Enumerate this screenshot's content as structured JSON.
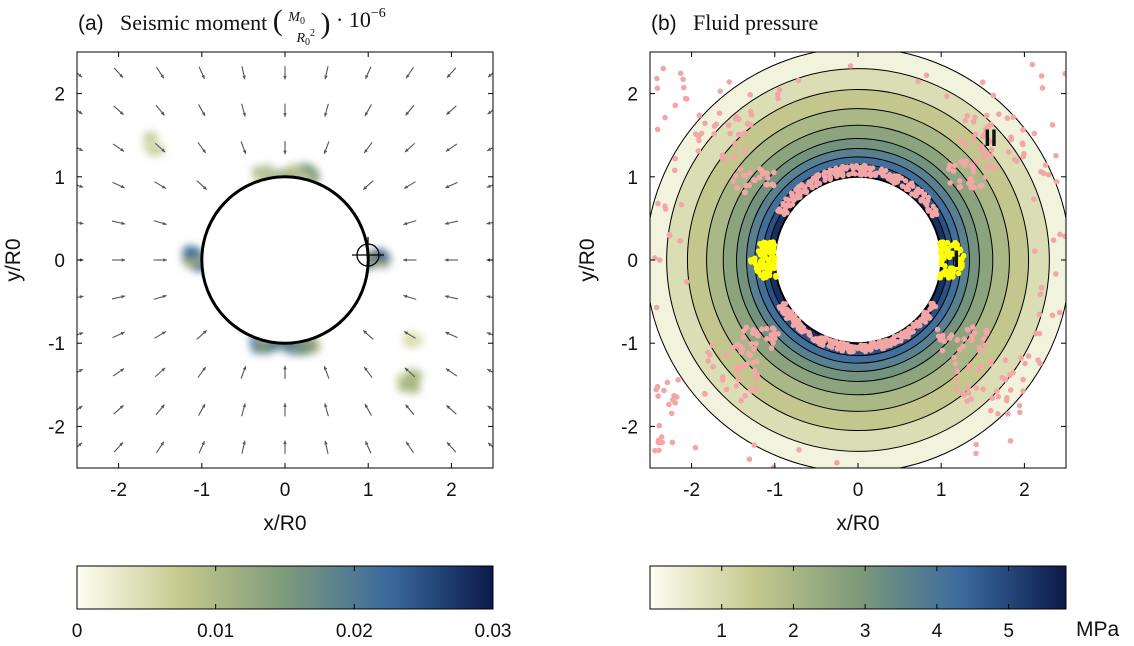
{
  "chart_data": [
    {
      "type": "heatmap",
      "panel_tag": "(a)",
      "title": "Seismic moment (M0/R0²) · 10⁻⁶",
      "xlabel": "x/R0",
      "ylabel": "y/R0",
      "xlim": [
        -2.5,
        2.5
      ],
      "ylim": [
        -2.5,
        2.5
      ],
      "xticks": [
        -2,
        -1,
        0,
        1,
        2
      ],
      "yticks": [
        -2,
        -1,
        0,
        1,
        2
      ],
      "tick_labels": {
        "x": [
          "-2",
          "-1",
          "0",
          "1",
          "2"
        ],
        "y": [
          "-2",
          "-1",
          "0",
          "1",
          "2"
        ]
      },
      "circle_radius": 1.0,
      "marker": {
        "x": 1.0,
        "y": 0.05,
        "symbol": "crosshair"
      },
      "high_moment_zones": [
        "top of circle",
        "bottom of circle",
        "left flank (x≈-1.1)",
        "right flank (x≈1.1)"
      ],
      "colorbar": {
        "min": 0,
        "max": 0.03,
        "ticks": [
          0,
          0.01,
          0.02,
          0.03
        ],
        "tick_labels": [
          "0",
          "0.01",
          "0.02",
          "0.03"
        ],
        "colors": [
          "#fefef2",
          "#c5c98e",
          "#7d9a7a",
          "#3a6a9e",
          "#0b1a4a"
        ]
      },
      "arrow_color": "#555555"
    },
    {
      "type": "heatmap",
      "panel_tag": "(b)",
      "title": "Fluid pressure",
      "xlabel": "x/R0",
      "ylabel": "y/R0",
      "xlim": [
        -2.5,
        2.5
      ],
      "ylim": [
        -2.5,
        2.5
      ],
      "xticks": [
        -2,
        -1,
        0,
        1,
        2
      ],
      "yticks": [
        -2,
        -1,
        0,
        1,
        2
      ],
      "tick_labels": {
        "x": [
          "-2",
          "-1",
          "0",
          "1",
          "2"
        ],
        "y": [
          "-2",
          "-1",
          "0",
          "1",
          "2"
        ]
      },
      "circle_radius": 1.0,
      "contour_radii": [
        2.55,
        2.3,
        2.05,
        1.82,
        1.62,
        1.46,
        1.34,
        1.24,
        1.15,
        1.08
      ],
      "contour_pressure_mpa": [
        0.3,
        0.9,
        1.5,
        2.0,
        2.6,
        3.1,
        3.7,
        4.2,
        4.8,
        5.4
      ],
      "regions": [
        {
          "label": "I",
          "x": 1.15,
          "y": 0.0
        },
        {
          "label": "II",
          "x": 1.65,
          "y": 1.5
        }
      ],
      "events": [
        {
          "name": "region I events",
          "color": "#ffff00"
        },
        {
          "name": "region II events",
          "color": "#f4a6a6"
        }
      ],
      "colorbar": {
        "min": 0,
        "max": 5.8,
        "ticks": [
          1,
          2,
          3,
          4,
          5
        ],
        "tick_labels": [
          "1",
          "2",
          "3",
          "4",
          "5"
        ],
        "unit": "MPa",
        "colors": [
          "#fefef2",
          "#c5c98e",
          "#7d9a7a",
          "#3a6a9e",
          "#0b1a4a"
        ]
      }
    }
  ]
}
